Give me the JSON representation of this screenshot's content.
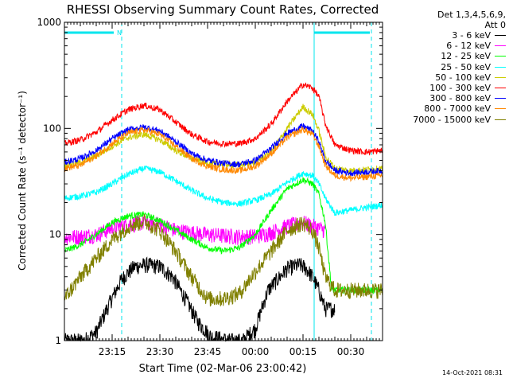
{
  "chart_data": {
    "type": "line",
    "title": "RHESSI Observing Summary Count Rates, Corrected",
    "xlabel": "Start Time (02-Mar-06 23:00:42)",
    "ylabel": "Corrected Count Rate (s⁻¹ detector⁻¹)",
    "yscale": "log",
    "ylim": [
      1,
      1000
    ],
    "y_ticks": [
      "1",
      "10",
      "100",
      "1000"
    ],
    "xlim_minutes": [
      0,
      100
    ],
    "x_ticks": [
      {
        "t": 15,
        "label": "23:15"
      },
      {
        "t": 30,
        "label": "23:30"
      },
      {
        "t": 45,
        "label": "23:45"
      },
      {
        "t": 60,
        "label": "00:00"
      },
      {
        "t": 75,
        "label": "00:15"
      },
      {
        "t": 90,
        "label": "00:30"
      }
    ],
    "grid": false,
    "legend_position": "right",
    "legend_header": [
      "Det 1,3,4,5,6,9,",
      "Att 0"
    ],
    "night_markers": [
      {
        "t": 0,
        "style": "solid"
      },
      {
        "t": 18,
        "style": "dashed"
      },
      {
        "t": 78.5,
        "style": "solid"
      },
      {
        "t": 96.5,
        "style": "dashed"
      }
    ],
    "night_bars": [
      {
        "t0": 0,
        "t1": 15.5,
        "label": "N"
      },
      {
        "t0": 78.5,
        "t1": 96,
        "label": ""
      }
    ],
    "series": [
      {
        "name": "3 - 6 keV",
        "color": "#000000",
        "t": [
          0,
          6,
          10,
          14,
          18,
          22,
          26,
          30,
          34,
          38,
          42,
          46,
          52,
          56,
          60,
          62,
          64,
          66,
          70,
          74,
          76,
          78,
          80,
          82,
          85
        ],
        "values": [
          1.0,
          1.0,
          1.2,
          2.2,
          3.8,
          5.0,
          5.2,
          5.0,
          4.0,
          2.5,
          1.5,
          1.1,
          1.0,
          1.0,
          1.3,
          2.0,
          3.0,
          3.5,
          4.8,
          5.2,
          4.8,
          4.0,
          3.0,
          2.0,
          2.0
        ]
      },
      {
        "name": "6 - 12 keV",
        "color": "#ff00ff",
        "t": [
          0,
          5,
          10,
          15,
          20,
          25,
          30,
          35,
          40,
          45,
          50,
          55,
          60,
          65,
          70,
          75,
          80,
          82
        ],
        "values": [
          9.5,
          9.6,
          10.0,
          11.5,
          12.5,
          13.0,
          12.5,
          11.0,
          10.5,
          10.0,
          9.8,
          9.6,
          9.7,
          10.5,
          12.0,
          13.0,
          11.5,
          11.0
        ]
      },
      {
        "name": "12 - 25 keV",
        "color": "#00ff00",
        "t": [
          0,
          5,
          10,
          15,
          20,
          25,
          30,
          35,
          40,
          45,
          50,
          55,
          60,
          65,
          70,
          75,
          78,
          80,
          82,
          84,
          90,
          96,
          100
        ],
        "values": [
          7.0,
          8.0,
          10.0,
          13.0,
          15.0,
          15.5,
          13.5,
          11.0,
          9.0,
          7.5,
          7.0,
          7.5,
          10.0,
          17.0,
          27.0,
          33.0,
          30.0,
          24.0,
          13.0,
          3.0,
          3.0,
          3.0,
          3.0
        ]
      },
      {
        "name": "25 - 50 keV",
        "color": "#00ffff",
        "t": [
          0,
          5,
          10,
          15,
          20,
          25,
          30,
          35,
          40,
          45,
          50,
          55,
          60,
          65,
          70,
          75,
          78,
          80,
          82,
          85,
          90,
          95,
          100
        ],
        "values": [
          22.0,
          23.0,
          25.0,
          30.0,
          37.0,
          42.0,
          39.0,
          32.0,
          26.0,
          22.0,
          20.0,
          19.5,
          21.0,
          24.0,
          31.0,
          38.0,
          36.0,
          30.0,
          22.0,
          16.0,
          17.0,
          18.0,
          19.0
        ]
      },
      {
        "name": "50 - 100 keV",
        "color": "#cccc00",
        "t": [
          0,
          5,
          10,
          15,
          20,
          25,
          30,
          35,
          40,
          45,
          50,
          55,
          60,
          65,
          70,
          75,
          78,
          80,
          82,
          85,
          90,
          95,
          100
        ],
        "values": [
          45.0,
          48.0,
          55.0,
          68.0,
          82.0,
          88.0,
          78.0,
          62.0,
          52.0,
          47.0,
          46.0,
          45.0,
          48.0,
          60.0,
          100.0,
          160.0,
          135.0,
          95.0,
          55.0,
          42.0,
          40.0,
          41.0,
          42.0
        ]
      },
      {
        "name": "100 - 300 keV",
        "color": "#ff0000",
        "t": [
          0,
          5,
          10,
          15,
          20,
          25,
          30,
          35,
          40,
          45,
          50,
          55,
          60,
          65,
          70,
          75,
          78,
          80,
          82,
          85,
          90,
          95,
          100
        ],
        "values": [
          72.0,
          78.0,
          92.0,
          120.0,
          150.0,
          165.0,
          150.0,
          115.0,
          88.0,
          75.0,
          72.0,
          72.0,
          80.0,
          110.0,
          180.0,
          260.0,
          240.0,
          200.0,
          110.0,
          70.0,
          62.0,
          60.0,
          62.0
        ]
      },
      {
        "name": "300 - 800 keV",
        "color": "#0000ff",
        "t": [
          0,
          5,
          10,
          15,
          20,
          25,
          30,
          35,
          40,
          45,
          50,
          55,
          60,
          65,
          70,
          75,
          78,
          80,
          82,
          85,
          90,
          95,
          100
        ],
        "values": [
          48.0,
          52.0,
          62.0,
          80.0,
          97.0,
          103.0,
          95.0,
          75.0,
          58.0,
          50.0,
          47.0,
          46.0,
          50.0,
          65.0,
          90.0,
          105.0,
          95.0,
          75.0,
          50.0,
          40.0,
          38.0,
          39.0,
          40.0
        ]
      },
      {
        "name": "800 - 7000 keV",
        "color": "#ff8800",
        "t": [
          0,
          5,
          10,
          15,
          20,
          25,
          30,
          35,
          40,
          45,
          50,
          55,
          60,
          65,
          70,
          75,
          78,
          80,
          82,
          85,
          90,
          95,
          100
        ],
        "values": [
          42.0,
          45.0,
          55.0,
          72.0,
          90.0,
          97.0,
          88.0,
          68.0,
          52.0,
          44.0,
          41.0,
          40.0,
          44.0,
          58.0,
          82.0,
          98.0,
          88.0,
          68.0,
          45.0,
          36.0,
          34.0,
          35.0,
          36.0
        ]
      },
      {
        "name": "7000 - 15000 keV",
        "color": "#808000",
        "t": [
          0,
          5,
          10,
          15,
          20,
          25,
          30,
          35,
          40,
          45,
          50,
          55,
          60,
          65,
          70,
          75,
          78,
          80,
          82,
          85,
          90,
          95,
          100
        ],
        "values": [
          2.5,
          4.0,
          6.0,
          9.0,
          12.0,
          13.5,
          11.0,
          7.0,
          4.0,
          2.5,
          2.5,
          2.8,
          4.5,
          7.0,
          11.0,
          13.0,
          11.0,
          7.5,
          4.0,
          3.0,
          3.0,
          3.0,
          3.0
        ]
      }
    ]
  },
  "footer_timestamp": "14-Oct-2021 08:31"
}
